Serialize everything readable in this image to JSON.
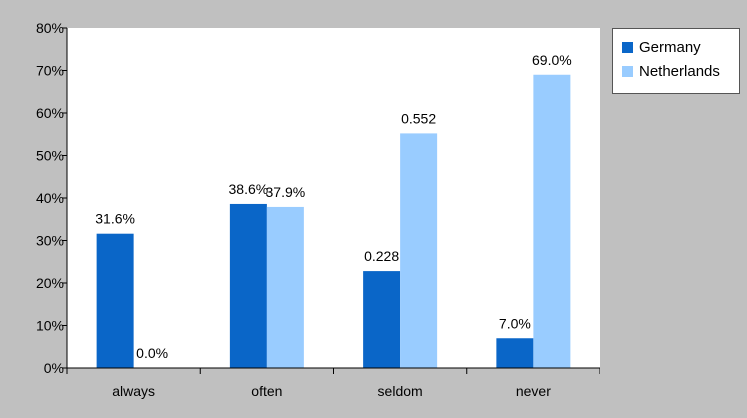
{
  "chart_data": {
    "type": "bar",
    "categories": [
      "always",
      "often",
      "seldom",
      "never"
    ],
    "series": [
      {
        "name": "Germany",
        "values": [
          0.316,
          0.386,
          0.228,
          0.07
        ],
        "labels": [
          "31.6%",
          "38.6%",
          "0.228",
          "7.0%"
        ],
        "color": "#0a66c8"
      },
      {
        "name": "Netherlands",
        "values": [
          0.0,
          0.379,
          0.552,
          0.69
        ],
        "labels": [
          "0.0%",
          "37.9%",
          "0.552",
          "69.0%"
        ],
        "color": "#99ccff"
      }
    ],
    "yticks": [
      "0%",
      "10%",
      "20%",
      "30%",
      "40%",
      "50%",
      "60%",
      "70%",
      "80%"
    ],
    "ylim": [
      0,
      0.8
    ],
    "title": "",
    "xlabel": "",
    "ylabel": "",
    "grid": false,
    "legend": "right"
  }
}
